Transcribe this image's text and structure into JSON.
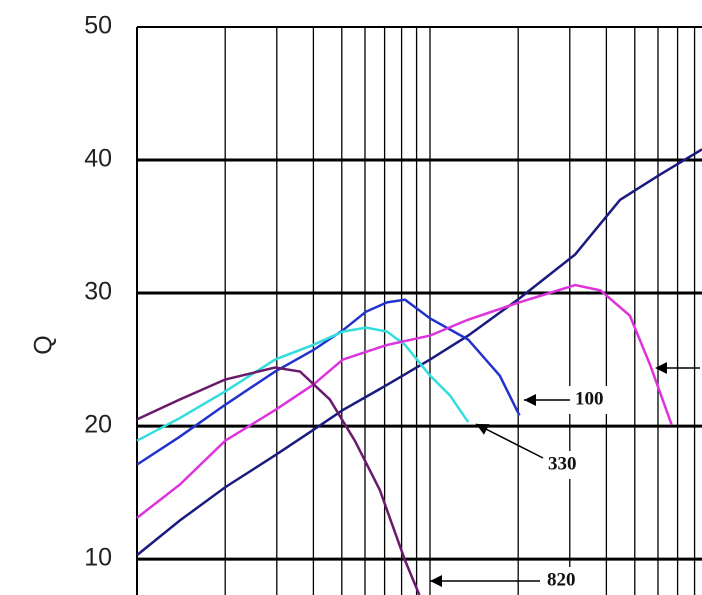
{
  "chart_data": {
    "type": "line",
    "y_label": "Q",
    "log_x": true,
    "grid": true,
    "xlim": [
      1,
      84.8
    ],
    "xticks": [
      1,
      2,
      3,
      4,
      5,
      6,
      7,
      8,
      9,
      10,
      20,
      30,
      40,
      50,
      60,
      70,
      80
    ],
    "ylim": [
      7.3,
      50
    ],
    "yticks": [
      10,
      20,
      30,
      40,
      50
    ],
    "series": [
      {
        "color": "#1a1a80",
        "x": [
          1,
          1.4,
          2,
          2.96,
          3.99,
          5.04,
          7.14,
          10,
          13.5,
          20.2,
          31.3,
          44.5,
          60.9,
          84.8
        ],
        "values": [
          10.3,
          12.9,
          15.4,
          17.8,
          19.7,
          21.2,
          23.1,
          25.0,
          26.8,
          29.6,
          32.9,
          37.0,
          38.9,
          40.8
        ]
      },
      {
        "name": "100",
        "color": "#2233cc",
        "x": [
          1,
          1.4,
          2,
          2.96,
          3.99,
          5.04,
          6.05,
          7.14,
          8.22,
          10,
          13.5,
          17.3,
          20.2
        ],
        "values": [
          17.1,
          19.2,
          21.6,
          24.1,
          25.7,
          27.2,
          28.6,
          29.3,
          29.5,
          28.1,
          26.5,
          23.8,
          20.8
        ]
      },
      {
        "name": "330",
        "color": "#33dddd",
        "x": [
          1,
          1.4,
          2,
          2.96,
          3.99,
          5.04,
          6.05,
          7.14,
          8.22,
          10,
          11.7,
          13.5
        ],
        "values": [
          18.9,
          20.6,
          22.6,
          25.0,
          26.1,
          27.1,
          27.4,
          27.1,
          26.1,
          23.8,
          22.3,
          20.3
        ]
      },
      {
        "color": "#dd33dd",
        "x": [
          1,
          1.4,
          2,
          2.96,
          3.99,
          5.04,
          7.14,
          10,
          13.5,
          20.2,
          31.3,
          38.2,
          48.1,
          56.4,
          66.8
        ],
        "values": [
          13.1,
          15.6,
          18.9,
          21.2,
          23.1,
          25.0,
          26.1,
          26.8,
          28.0,
          29.3,
          30.6,
          30.2,
          28.3,
          24.6,
          20.1
        ]
      },
      {
        "name": "820",
        "color": "#6a1a6a",
        "x": [
          1,
          1.4,
          2,
          2.96,
          3.6,
          4.55,
          5.54,
          6.74,
          8.22,
          9.2
        ],
        "values": [
          20.5,
          22.0,
          23.5,
          24.4,
          24.1,
          22.0,
          18.9,
          15.2,
          9.9,
          7.3
        ]
      }
    ]
  }
}
